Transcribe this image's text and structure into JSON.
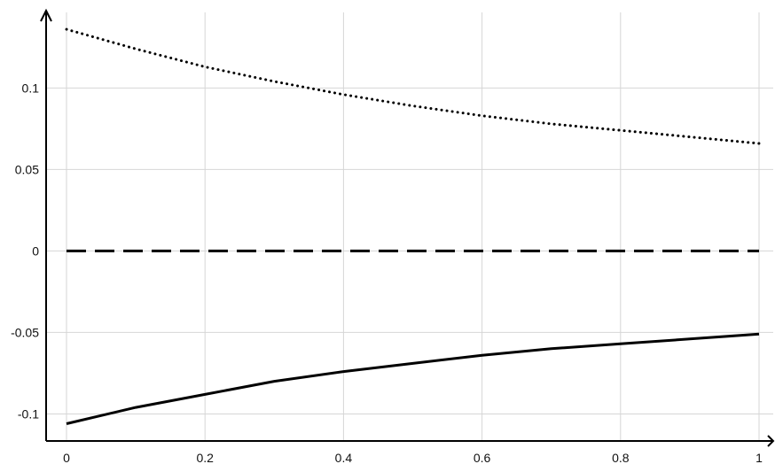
{
  "chart_data": {
    "type": "line",
    "title": "",
    "xlabel": "",
    "ylabel": "",
    "xlim": [
      0,
      1
    ],
    "ylim": [
      -0.1166,
      0.1464
    ],
    "grid": true,
    "legend": "none",
    "x_ticks": [
      0,
      0.2,
      0.4,
      0.6,
      0.8,
      1
    ],
    "x_tick_labels": [
      "0",
      "0.2",
      "0.4",
      "0.6",
      "0.8",
      "1"
    ],
    "y_ticks": [
      -0.1,
      -0.05,
      0,
      0.05,
      0.1
    ],
    "y_tick_labels": [
      "-0.1",
      "-0.05",
      "0",
      "0.05",
      "0.1"
    ],
    "series": [
      {
        "style": "dotted",
        "color": "#000000",
        "x": [
          0,
          0.1,
          0.2,
          0.3,
          0.4,
          0.5,
          0.6,
          0.7,
          0.8,
          0.9,
          1
        ],
        "y": [
          0.136,
          0.124,
          0.113,
          0.104,
          0.096,
          0.089,
          0.083,
          0.078,
          0.074,
          0.07,
          0.066
        ]
      },
      {
        "style": "dashed",
        "color": "#000000",
        "x": [
          0,
          1
        ],
        "y": [
          0,
          0
        ]
      },
      {
        "style": "solid",
        "color": "#000000",
        "x": [
          0,
          0.1,
          0.2,
          0.3,
          0.4,
          0.5,
          0.6,
          0.7,
          0.8,
          0.9,
          1
        ],
        "y": [
          -0.106,
          -0.096,
          -0.088,
          -0.08,
          -0.074,
          -0.069,
          -0.064,
          -0.06,
          -0.057,
          -0.054,
          -0.051
        ]
      }
    ]
  }
}
